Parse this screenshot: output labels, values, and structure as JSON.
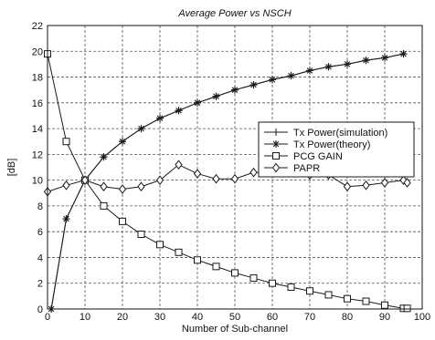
{
  "chart_data": {
    "type": "line",
    "title": "Average Power vs NSCH",
    "xlabel": "Number of Sub-channel",
    "ylabel": "[dB]",
    "xlim": [
      0,
      100
    ],
    "ylim": [
      0,
      22
    ],
    "xticks": [
      0,
      10,
      20,
      30,
      40,
      50,
      60,
      70,
      80,
      90,
      100
    ],
    "yticks": [
      0,
      2,
      4,
      6,
      8,
      10,
      12,
      14,
      16,
      18,
      20,
      22
    ],
    "grid": true,
    "grid_style": "dashed",
    "legend_position": "right-middle",
    "colors": {
      "lines": "#1a1a1a",
      "grid": "#555555",
      "background": "#ffffff"
    },
    "series": [
      {
        "name": "Tx Power(simulation)",
        "marker": "plus",
        "x": [
          1,
          5,
          10,
          15,
          20,
          25,
          30,
          35,
          40,
          45,
          50,
          55,
          60,
          65,
          70,
          75,
          80,
          85,
          90,
          95
        ],
        "y": [
          0.0,
          7.0,
          10.0,
          11.8,
          13.0,
          14.0,
          14.8,
          15.4,
          16.0,
          16.5,
          17.0,
          17.4,
          17.8,
          18.1,
          18.5,
          18.8,
          19.0,
          19.3,
          19.5,
          19.8
        ]
      },
      {
        "name": "Tx Power(theory)",
        "marker": "asterisk",
        "x": [
          1,
          5,
          10,
          15,
          20,
          25,
          30,
          35,
          40,
          45,
          50,
          55,
          60,
          65,
          70,
          75,
          80,
          85,
          90,
          95
        ],
        "y": [
          0.0,
          7.0,
          10.0,
          11.8,
          13.0,
          14.0,
          14.8,
          15.4,
          16.0,
          16.5,
          17.0,
          17.4,
          17.8,
          18.1,
          18.5,
          18.8,
          19.0,
          19.3,
          19.5,
          19.8
        ]
      },
      {
        "name": "PCG GAIN",
        "marker": "square",
        "x": [
          0,
          5,
          10,
          15,
          20,
          25,
          30,
          35,
          40,
          45,
          50,
          55,
          60,
          65,
          70,
          75,
          80,
          85,
          90,
          95,
          96
        ],
        "y": [
          19.8,
          13.0,
          10.0,
          8.0,
          6.8,
          5.8,
          5.0,
          4.4,
          3.8,
          3.3,
          2.8,
          2.4,
          2.0,
          1.7,
          1.4,
          1.1,
          0.8,
          0.6,
          0.3,
          0.05,
          0.05
        ]
      },
      {
        "name": "PAPR",
        "marker": "diamond",
        "x": [
          0,
          5,
          10,
          15,
          20,
          25,
          30,
          35,
          40,
          45,
          50,
          55,
          60,
          65,
          70,
          75,
          80,
          85,
          90,
          95,
          96
        ],
        "y": [
          9.1,
          9.6,
          10.0,
          9.5,
          9.3,
          9.5,
          10.0,
          11.2,
          10.5,
          10.1,
          10.1,
          10.6,
          10.6,
          10.7,
          10.4,
          10.4,
          9.5,
          9.6,
          9.8,
          10.0,
          9.8
        ]
      }
    ]
  }
}
